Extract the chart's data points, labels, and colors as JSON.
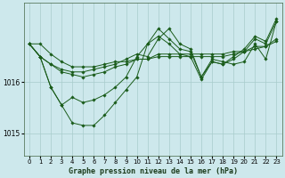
{
  "background_color": "#cde8ec",
  "plot_bg_color": "#cde8ec",
  "line_color": "#1a5c1a",
  "marker_color": "#1a5c1a",
  "grid_color": "#a8cccc",
  "xlabel": "Graphe pression niveau de la mer (hPa)",
  "xlim": [
    -0.5,
    23.5
  ],
  "ylim": [
    1014.55,
    1017.55
  ],
  "yticks": [
    1015,
    1016
  ],
  "xticks": [
    0,
    1,
    2,
    3,
    4,
    5,
    6,
    7,
    8,
    9,
    10,
    11,
    12,
    13,
    14,
    15,
    16,
    17,
    18,
    19,
    20,
    21,
    22,
    23
  ],
  "series": [
    [
      1016.75,
      1016.75,
      1016.55,
      1016.4,
      1016.3,
      1016.3,
      1016.3,
      1016.35,
      1016.4,
      1016.4,
      1016.45,
      1016.45,
      1016.5,
      1016.5,
      1016.5,
      1016.5,
      1016.5,
      1016.5,
      1016.5,
      1016.55,
      1016.6,
      1016.65,
      1016.7,
      1016.8
    ],
    [
      1016.75,
      1016.5,
      1016.35,
      1016.25,
      1016.2,
      1016.2,
      1016.25,
      1016.3,
      1016.35,
      1016.45,
      1016.55,
      1016.5,
      1016.85,
      1017.05,
      1016.75,
      1016.65,
      1016.1,
      1016.45,
      1016.4,
      1016.35,
      1016.4,
      1016.75,
      1016.45,
      1017.2
    ],
    [
      1016.75,
      1016.5,
      1015.9,
      1015.55,
      1015.7,
      1015.6,
      1015.65,
      1015.75,
      1015.9,
      1016.1,
      1016.5,
      1016.75,
      1017.05,
      1016.85,
      1016.65,
      1016.6,
      1016.1,
      1016.4,
      1016.35,
      1016.5,
      1016.65,
      1016.9,
      1016.8,
      1017.25
    ],
    [
      1016.75,
      1016.5,
      1016.35,
      1016.2,
      1016.15,
      1016.1,
      1016.15,
      1016.2,
      1016.3,
      1016.35,
      1016.45,
      1016.45,
      1016.55,
      1016.55,
      1016.55,
      1016.55,
      1016.55,
      1016.55,
      1016.55,
      1016.6,
      1016.6,
      1016.7,
      1016.7,
      1016.85
    ]
  ],
  "series_b": [
    1016.75,
    1016.5,
    1015.9,
    1015.55,
    1015.2,
    1015.15,
    1015.15,
    1015.35,
    1015.6,
    1015.85,
    1016.1,
    1016.75,
    1016.9,
    1016.75,
    1016.55,
    1016.5,
    1016.05,
    1016.4,
    1016.35,
    1016.45,
    1016.6,
    1016.85,
    1016.75,
    1017.2
  ]
}
